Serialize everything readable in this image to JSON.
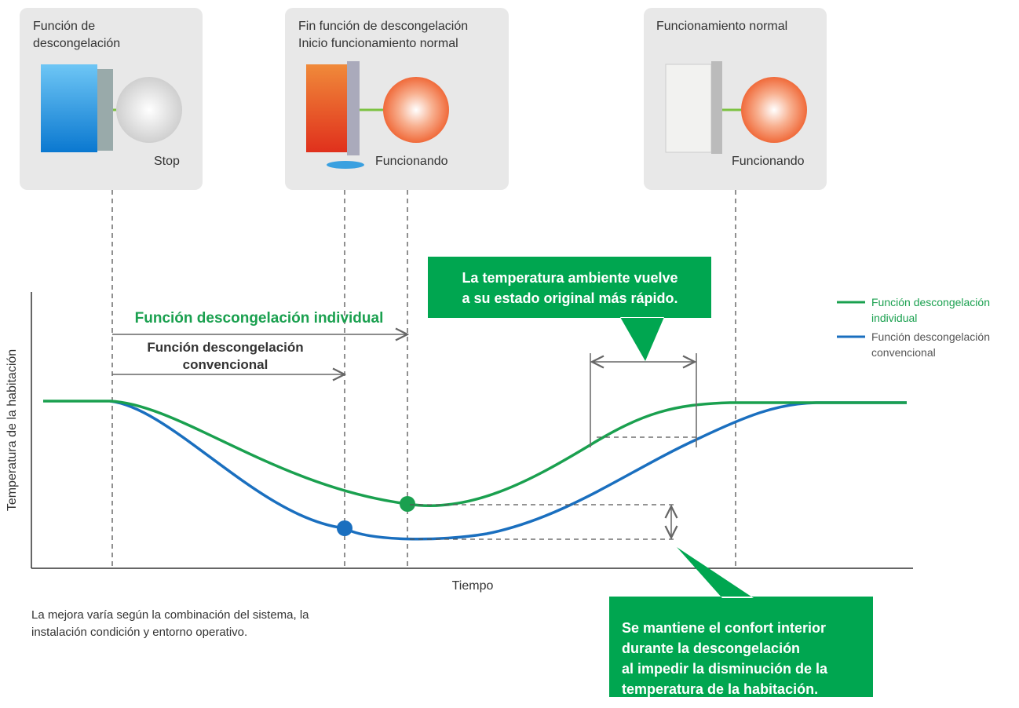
{
  "panels": [
    {
      "lines": [
        "Función de",
        "descongelación"
      ],
      "status": "Stop"
    },
    {
      "lines": [
        "Fin función de descongelación",
        "Inicio funcionamiento normal"
      ],
      "status": "Funcionando"
    },
    {
      "lines": [
        "Funcionamiento normal"
      ],
      "status": "Funcionando"
    }
  ],
  "y_axis_label": "Temperatura de la habitación",
  "x_axis_label": "Tiempo",
  "individual_label": "Función descongelación individual",
  "conventional_label": [
    "Función descongelación",
    "convencional"
  ],
  "callout_top": [
    "La temperatura ambiente vuelve",
    "a su estado original más rápido."
  ],
  "callout_bottom": [
    "Se mantiene el confort interior",
    "durante la descongelación",
    "al impedir la disminución de la",
    "temperatura de la habitación."
  ],
  "legend": [
    {
      "lines": [
        "Función descongelación",
        "individual"
      ],
      "color": "#1aa04f"
    },
    {
      "lines": [
        "Función descongelación",
        "convencional"
      ],
      "color": "#1a6fbf"
    }
  ],
  "note": [
    "La mejora varía según la combinación del sistema, la",
    "instalación condición y entorno operativo."
  ]
}
